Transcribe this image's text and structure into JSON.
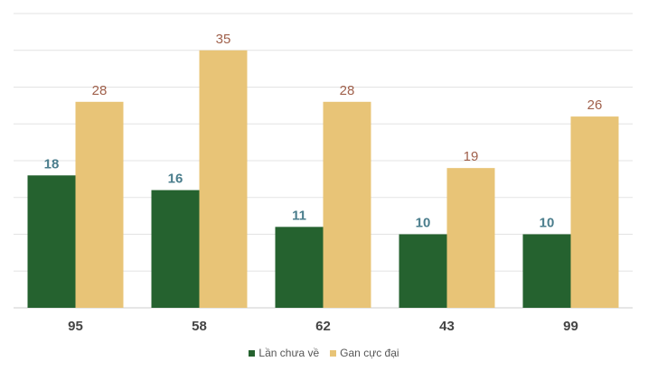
{
  "chart_data": {
    "type": "bar",
    "categories": [
      "95",
      "58",
      "62",
      "43",
      "99"
    ],
    "series": [
      {
        "name": "Lần chưa về",
        "values": [
          18,
          16,
          11,
          10,
          10
        ],
        "color": "#25622f",
        "label_color": "#4a7d8c"
      },
      {
        "name": "Gan cực đại",
        "values": [
          28,
          35,
          28,
          19,
          26
        ],
        "color": "#e8c477",
        "label_color": "#a0604b"
      }
    ],
    "ylim": [
      0,
      40
    ],
    "grid": true,
    "legend_position": "bottom-center",
    "title": "",
    "xlabel": "",
    "ylabel": ""
  }
}
